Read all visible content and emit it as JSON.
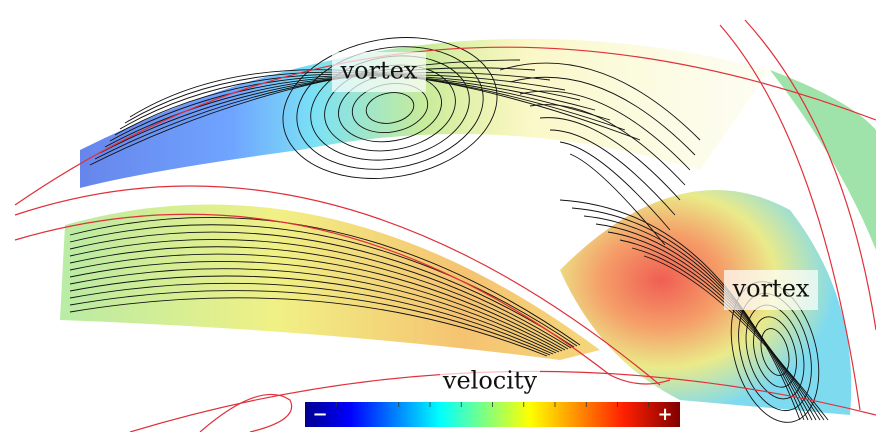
{
  "labels": [
    "vortex",
    "vortex"
  ],
  "colorbar": {
    "title": "velocity",
    "min": "−",
    "max": "+"
  }
}
